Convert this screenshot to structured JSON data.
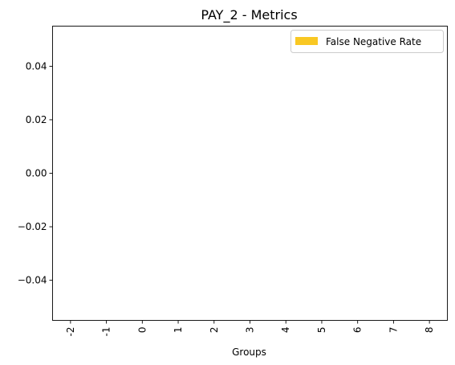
{
  "chart_data": {
    "type": "bar",
    "title": "PAY_2 - Metrics",
    "xlabel": "Groups",
    "ylabel": "",
    "categories": [
      "-2",
      "-1",
      "0",
      "1",
      "2",
      "3",
      "4",
      "5",
      "6",
      "7",
      "8"
    ],
    "series": [
      {
        "name": "False Negative Rate",
        "color": "#f9c823",
        "values": [
          0,
          0,
          0,
          0,
          0,
          0,
          0,
          0,
          0,
          0,
          0
        ]
      }
    ],
    "ylim": [
      -0.055,
      0.055
    ],
    "yticks": [
      -0.04,
      -0.02,
      0.0,
      0.02,
      0.04
    ],
    "ytick_labels": [
      "−0.04",
      "−0.02",
      "0.00",
      "0.02",
      "0.04"
    ],
    "grid": false,
    "legend_position": "top-right"
  }
}
